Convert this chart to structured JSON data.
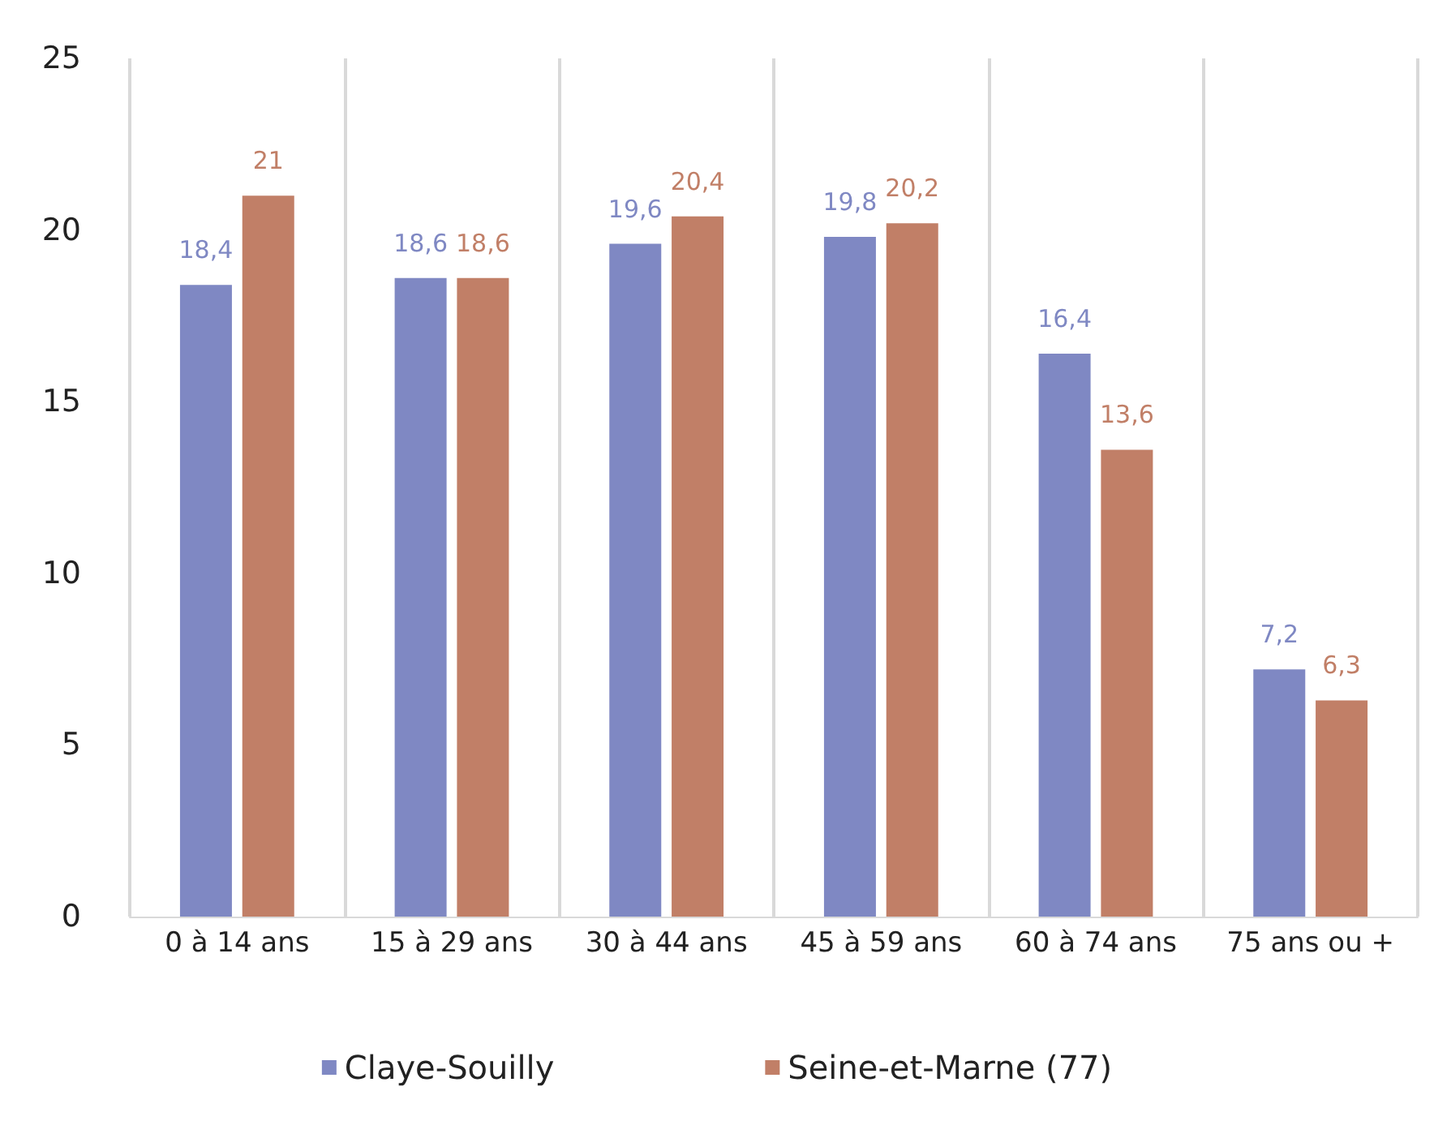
{
  "chart_data": {
    "type": "bar",
    "categories": [
      "0 à 14 ans",
      "15 à 29 ans",
      "30 à 44 ans",
      "45 à 59 ans",
      "60 à 74 ans",
      "75 ans ou +"
    ],
    "series": [
      {
        "name": "Claye-Souilly",
        "color": "#7f88c3",
        "values": [
          18.4,
          18.6,
          19.6,
          19.8,
          16.4,
          7.2
        ],
        "value_labels": [
          "18,4",
          "18,6",
          "19,6",
          "19,8",
          "16,4",
          "7,2"
        ]
      },
      {
        "name": "Seine-et-Marne (77)",
        "color": "#c17f67",
        "values": [
          21,
          18.6,
          20.4,
          20.2,
          13.6,
          6.3
        ],
        "value_labels": [
          "21",
          "18,6",
          "20,4",
          "20,2",
          "13,6",
          "6,3"
        ]
      }
    ],
    "ylim": [
      0,
      25
    ],
    "yticks": [
      0,
      5,
      10,
      15,
      20,
      25
    ],
    "grid": "x",
    "legend": "bottom"
  }
}
